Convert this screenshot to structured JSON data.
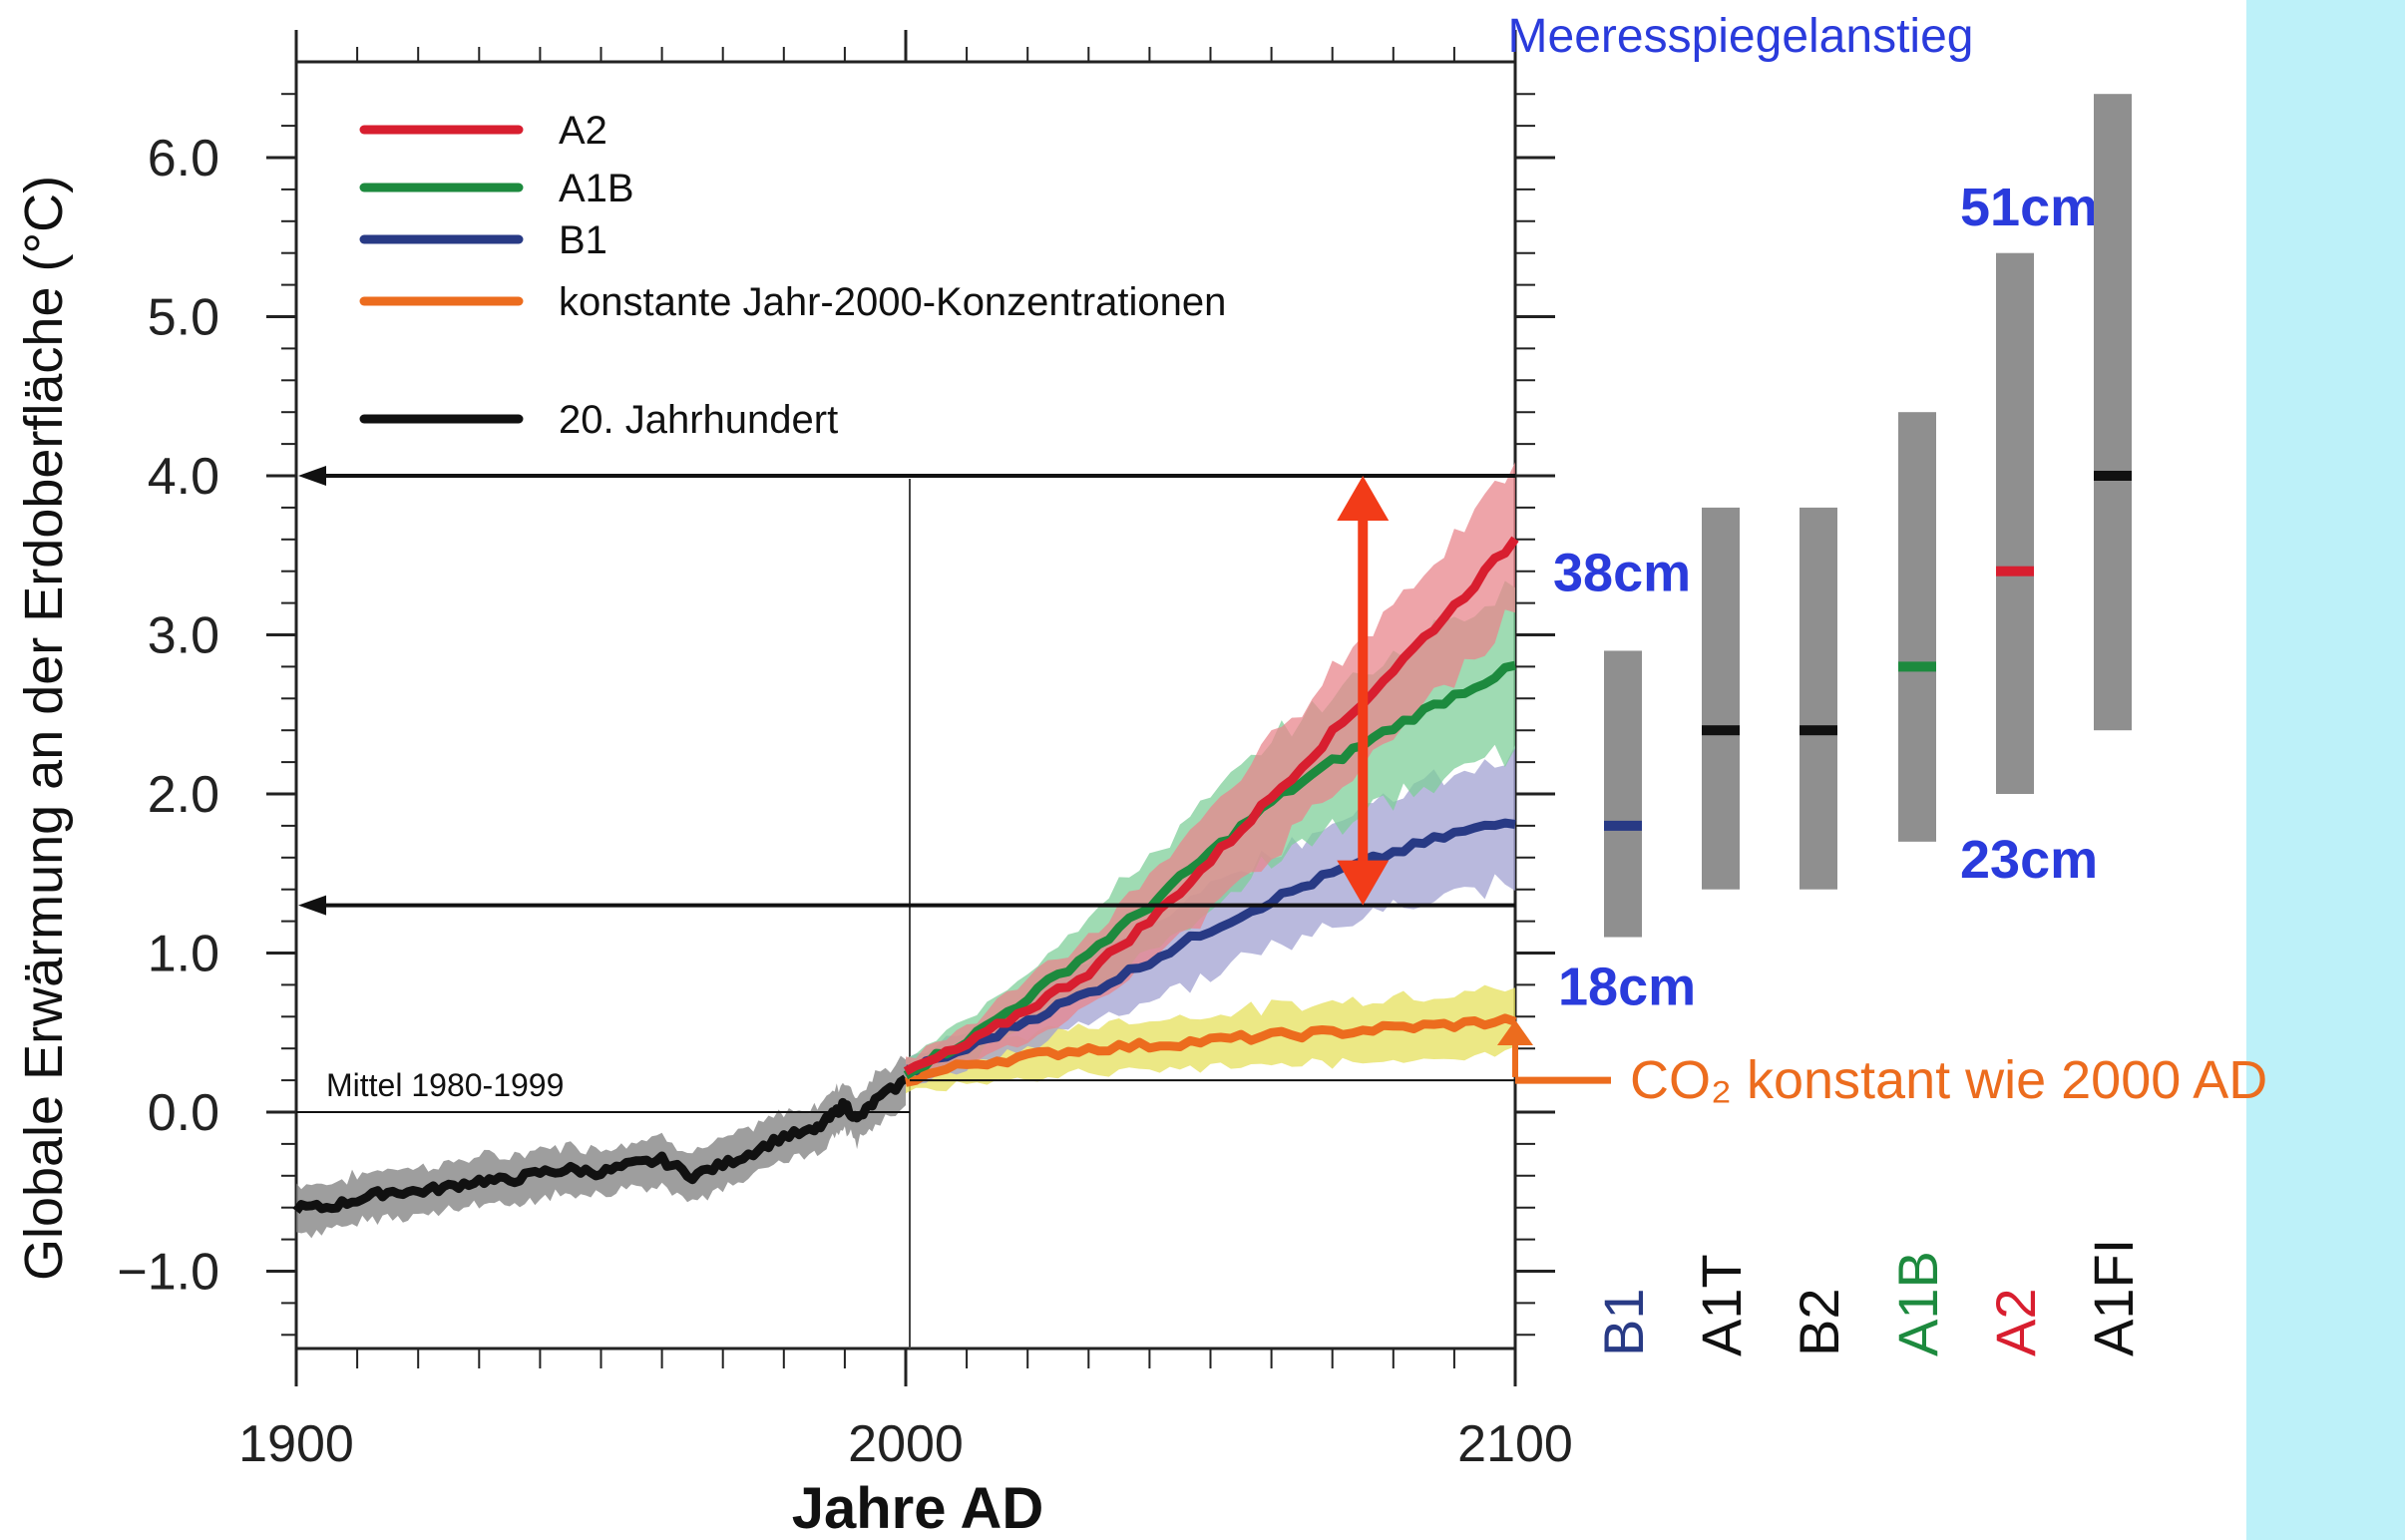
{
  "chart_data": {
    "type": "line",
    "title": "Meeresspiegelanstieg",
    "xlabel": "Jahre AD",
    "ylabel": "Globale Erwärmung an der Erdoberfläche (°C)",
    "xlim": [
      1900,
      2100
    ],
    "ylim": [
      -1.45,
      6.6
    ],
    "x_ticks": [
      "1900",
      "2000",
      "2100"
    ],
    "y_ticks": [
      "−1.0",
      "0.0",
      "1.0",
      "2.0",
      "3.0",
      "4.0",
      "5.0",
      "6.0"
    ],
    "legend": {
      "placement": "top-left",
      "entries": [
        {
          "label": "A2",
          "color": "#d81e2f"
        },
        {
          "label": "A1B",
          "color": "#1d8a3e"
        },
        {
          "label": "B1",
          "color": "#283a85"
        },
        {
          "label": "konstante Jahr-2000-Konzentrationen",
          "color": "#ec6c1e"
        },
        {
          "label": "20. Jahrhundert",
          "color": "#111111"
        }
      ]
    },
    "series": [
      {
        "name": "20. Jahrhundert",
        "color": "#111111",
        "band": "#7d7d7d",
        "x": [
          1900,
          1905,
          1910,
          1915,
          1920,
          1925,
          1930,
          1935,
          1940,
          1945,
          1950,
          1955,
          1960,
          1965,
          1970,
          1975,
          1980,
          1985,
          1988,
          1990,
          1992,
          1995,
          2000
        ],
        "y": [
          -0.6,
          -0.6,
          -0.55,
          -0.5,
          -0.5,
          -0.47,
          -0.43,
          -0.43,
          -0.38,
          -0.36,
          -0.38,
          -0.33,
          -0.3,
          -0.4,
          -0.33,
          -0.25,
          -0.15,
          -0.12,
          -0.02,
          0.05,
          -0.05,
          0.07,
          0.2
        ],
        "band_width": 0.15
      },
      {
        "name": "A2",
        "color": "#d81e2f",
        "band": "#e8868c",
        "x": [
          2000,
          2010,
          2020,
          2030,
          2040,
          2050,
          2060,
          2070,
          2080,
          2090,
          2100
        ],
        "y": [
          0.25,
          0.42,
          0.65,
          0.88,
          1.2,
          1.58,
          1.98,
          2.38,
          2.78,
          3.18,
          3.6
        ],
        "band_width": [
          0.08,
          0.12,
          0.18,
          0.22,
          0.28,
          0.32,
          0.36,
          0.4,
          0.42,
          0.44,
          0.45
        ]
      },
      {
        "name": "A1B",
        "color": "#1d8a3e",
        "band": "#7fcf9a",
        "x": [
          2000,
          2010,
          2020,
          2030,
          2040,
          2050,
          2060,
          2070,
          2080,
          2090,
          2100
        ],
        "y": [
          0.25,
          0.45,
          0.72,
          1.0,
          1.3,
          1.63,
          1.95,
          2.2,
          2.42,
          2.62,
          2.8
        ],
        "band_width": [
          0.08,
          0.12,
          0.18,
          0.24,
          0.3,
          0.34,
          0.38,
          0.42,
          0.46,
          0.5,
          0.52
        ]
      },
      {
        "name": "B1",
        "color": "#283a85",
        "band": "#a2a2d2",
        "x": [
          2000,
          2010,
          2020,
          2030,
          2040,
          2050,
          2060,
          2070,
          2080,
          2090,
          2100
        ],
        "y": [
          0.25,
          0.4,
          0.58,
          0.75,
          0.95,
          1.15,
          1.33,
          1.5,
          1.63,
          1.75,
          1.83
        ],
        "band_width": [
          0.08,
          0.12,
          0.16,
          0.2,
          0.24,
          0.28,
          0.3,
          0.33,
          0.36,
          0.38,
          0.4
        ]
      },
      {
        "name": "konstante Jahr-2000-Konzentrationen",
        "color": "#ec6c1e",
        "band": "#e6e05c",
        "x": [
          2000,
          2010,
          2020,
          2030,
          2040,
          2050,
          2060,
          2070,
          2080,
          2090,
          2100
        ],
        "y": [
          0.2,
          0.3,
          0.35,
          0.4,
          0.42,
          0.45,
          0.48,
          0.5,
          0.53,
          0.55,
          0.58
        ],
        "band_width": [
          0.08,
          0.12,
          0.14,
          0.15,
          0.16,
          0.17,
          0.18,
          0.19,
          0.2,
          0.2,
          0.2
        ]
      }
    ],
    "annotations": [
      {
        "text": "Mittel 1980-1999",
        "y": 0.0
      },
      {
        "text": "38cm"
      },
      {
        "text": "18cm"
      },
      {
        "text": "51cm"
      },
      {
        "text": "23cm"
      },
      {
        "text": "CO₂ konstant wie 2000 AD"
      }
    ],
    "range_lines": [
      4.0,
      1.3
    ],
    "scenario_bars": [
      {
        "label": "B1",
        "low": 1.1,
        "high": 2.9,
        "best": 1.8,
        "label_color": "#283a85",
        "best_color": "#283a85"
      },
      {
        "label": "A1T",
        "low": 1.4,
        "high": 3.8,
        "best": 2.4,
        "label_color": "#111111",
        "best_color": "#111111"
      },
      {
        "label": "B2",
        "low": 1.4,
        "high": 3.8,
        "best": 2.4,
        "label_color": "#111111",
        "best_color": "#111111"
      },
      {
        "label": "A1B",
        "low": 1.7,
        "high": 4.4,
        "best": 2.8,
        "label_color": "#1d8a3e",
        "best_color": "#1d8a3e"
      },
      {
        "label": "A2",
        "low": 2.0,
        "high": 5.4,
        "best": 3.4,
        "label_color": "#d81e2f",
        "best_color": "#d81e2f"
      },
      {
        "label": "A1FI",
        "low": 2.4,
        "high": 6.4,
        "best": 4.0,
        "label_color": "#111111",
        "best_color": "#111111"
      }
    ],
    "grid": false
  }
}
